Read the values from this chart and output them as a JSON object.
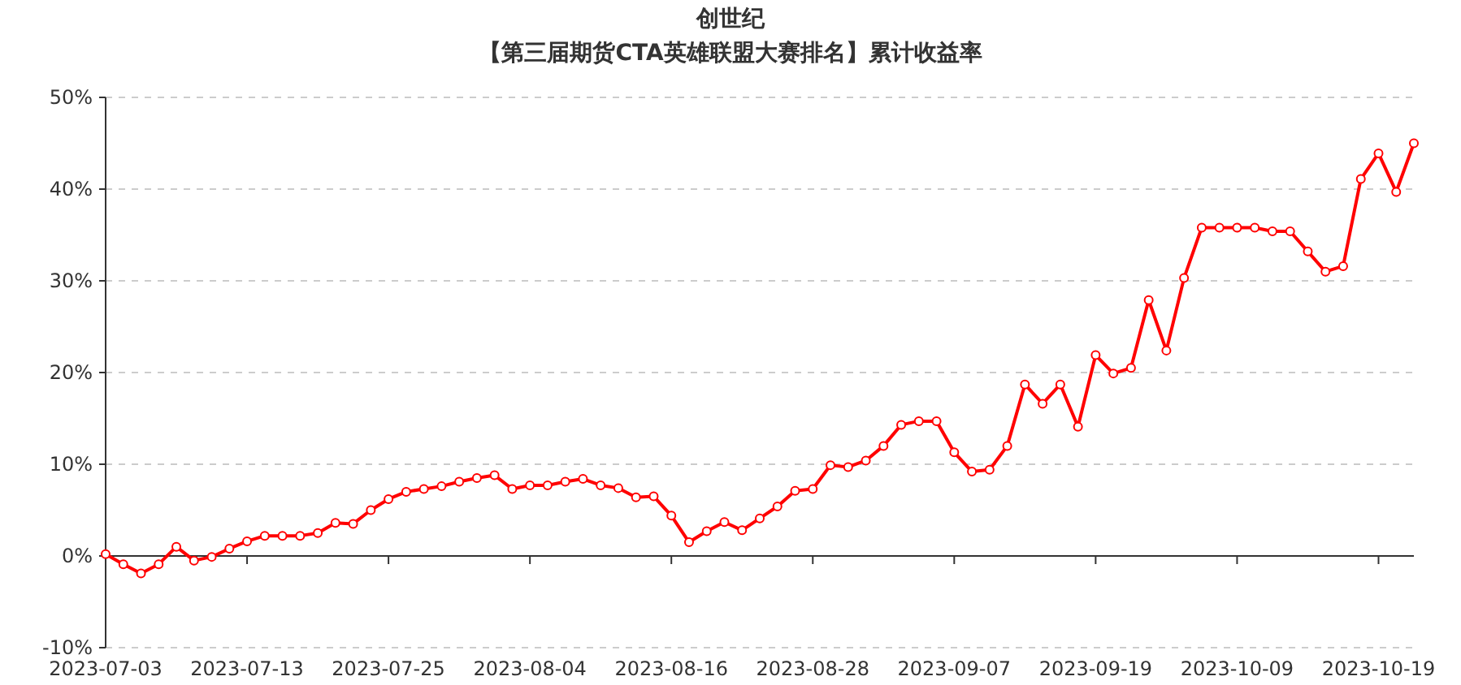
{
  "chart_data": {
    "type": "line",
    "title": "创世纪",
    "subtitle": "【第三届期货CTA英雄联盟大赛排名】累计收益率",
    "categories": [
      "2023-07-03",
      null,
      null,
      null,
      null,
      null,
      null,
      null,
      "2023-07-13",
      null,
      null,
      null,
      null,
      null,
      null,
      null,
      "2023-07-25",
      null,
      null,
      null,
      null,
      null,
      null,
      null,
      "2023-08-04",
      null,
      null,
      null,
      null,
      null,
      null,
      null,
      "2023-08-16",
      null,
      null,
      null,
      null,
      null,
      null,
      null,
      "2023-08-28",
      null,
      null,
      null,
      null,
      null,
      null,
      null,
      "2023-09-07",
      null,
      null,
      null,
      null,
      null,
      null,
      null,
      "2023-09-19",
      null,
      null,
      null,
      null,
      null,
      null,
      null,
      "2023-10-09",
      null,
      null,
      null,
      null,
      null,
      null,
      null,
      "2023-10-19",
      null,
      null
    ],
    "series": [
      {
        "color": "#ff0000",
        "values": [
          0.2,
          -0.9,
          -1.9,
          -0.9,
          1.0,
          -0.5,
          -0.1,
          0.8,
          1.6,
          2.2,
          2.2,
          2.2,
          2.5,
          3.6,
          3.5,
          5.0,
          6.2,
          7.0,
          7.3,
          7.6,
          8.1,
          8.5,
          8.8,
          7.3,
          7.7,
          7.7,
          8.1,
          8.4,
          7.7,
          7.4,
          6.4,
          6.5,
          4.4,
          1.5,
          2.7,
          3.7,
          2.8,
          4.1,
          5.4,
          7.1,
          7.3,
          9.9,
          9.7,
          10.4,
          12.0,
          14.3,
          14.7,
          14.7,
          11.3,
          9.2,
          9.4,
          12.0,
          18.7,
          16.6,
          18.7,
          14.1,
          21.9,
          19.9,
          20.5,
          27.9,
          22.4,
          30.3,
          35.8,
          35.8,
          35.8,
          35.8,
          35.4,
          35.4,
          33.2,
          31.0,
          31.6,
          41.1,
          43.9,
          39.7,
          45.0
        ]
      }
    ],
    "ylim": [
      -10,
      50
    ],
    "yticks": [
      {
        "value": -10,
        "label": "-10%"
      },
      {
        "value": 0,
        "label": "0%"
      },
      {
        "value": 10,
        "label": "10%"
      },
      {
        "value": 20,
        "label": "20%"
      },
      {
        "value": 30,
        "label": "30%"
      },
      {
        "value": 40,
        "label": "40%"
      },
      {
        "value": 50,
        "label": "50%"
      }
    ],
    "grid": "y",
    "marker": "circle",
    "line_style": "solid"
  }
}
